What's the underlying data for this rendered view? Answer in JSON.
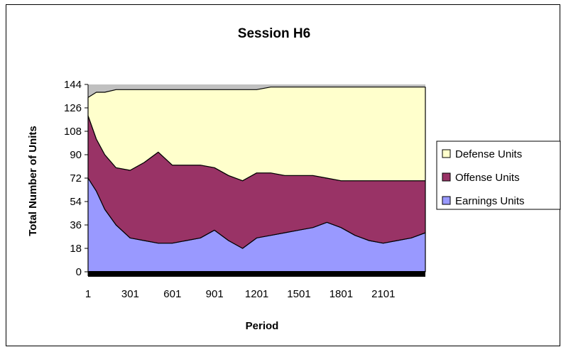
{
  "chart_data": {
    "type": "area",
    "title": "Session H6",
    "xlabel": "Period",
    "ylabel": "Total Number of Units",
    "stacked": true,
    "xlim": [
      1,
      2400
    ],
    "ylim": [
      0,
      144
    ],
    "yticks": [
      0,
      18,
      36,
      54,
      72,
      90,
      108,
      126,
      144
    ],
    "xticks": [
      1,
      301,
      601,
      901,
      1201,
      1501,
      1801,
      2101
    ],
    "grid": false,
    "legend_position": "right",
    "legend_order": [
      "Defense Units",
      "Offense Units",
      "Earnings Units"
    ],
    "total": 144,
    "x": [
      1,
      60,
      120,
      200,
      300,
      400,
      500,
      600,
      700,
      800,
      900,
      1000,
      1100,
      1200,
      1300,
      1400,
      1500,
      1600,
      1700,
      1800,
      1900,
      2000,
      2100,
      2200,
      2300,
      2400
    ],
    "series": [
      {
        "name": "Earnings Units",
        "color": "#9999ff",
        "values": [
          72,
          62,
          48,
          36,
          26,
          24,
          22,
          22,
          24,
          26,
          32,
          24,
          18,
          26,
          28,
          30,
          32,
          34,
          38,
          34,
          28,
          24,
          22,
          24,
          26,
          30
        ]
      },
      {
        "name": "Offense Units",
        "color": "#993366",
        "values": [
          48,
          40,
          42,
          44,
          52,
          60,
          70,
          60,
          58,
          56,
          48,
          50,
          52,
          50,
          48,
          44,
          42,
          40,
          34,
          36,
          42,
          46,
          48,
          46,
          44,
          40
        ]
      },
      {
        "name": "Defense Units",
        "color": "#ffffcc",
        "values": [
          14,
          36,
          48,
          60,
          62,
          56,
          48,
          58,
          58,
          58,
          60,
          66,
          70,
          64,
          66,
          68,
          68,
          68,
          70,
          72,
          72,
          72,
          72,
          72,
          72,
          72
        ]
      }
    ]
  }
}
